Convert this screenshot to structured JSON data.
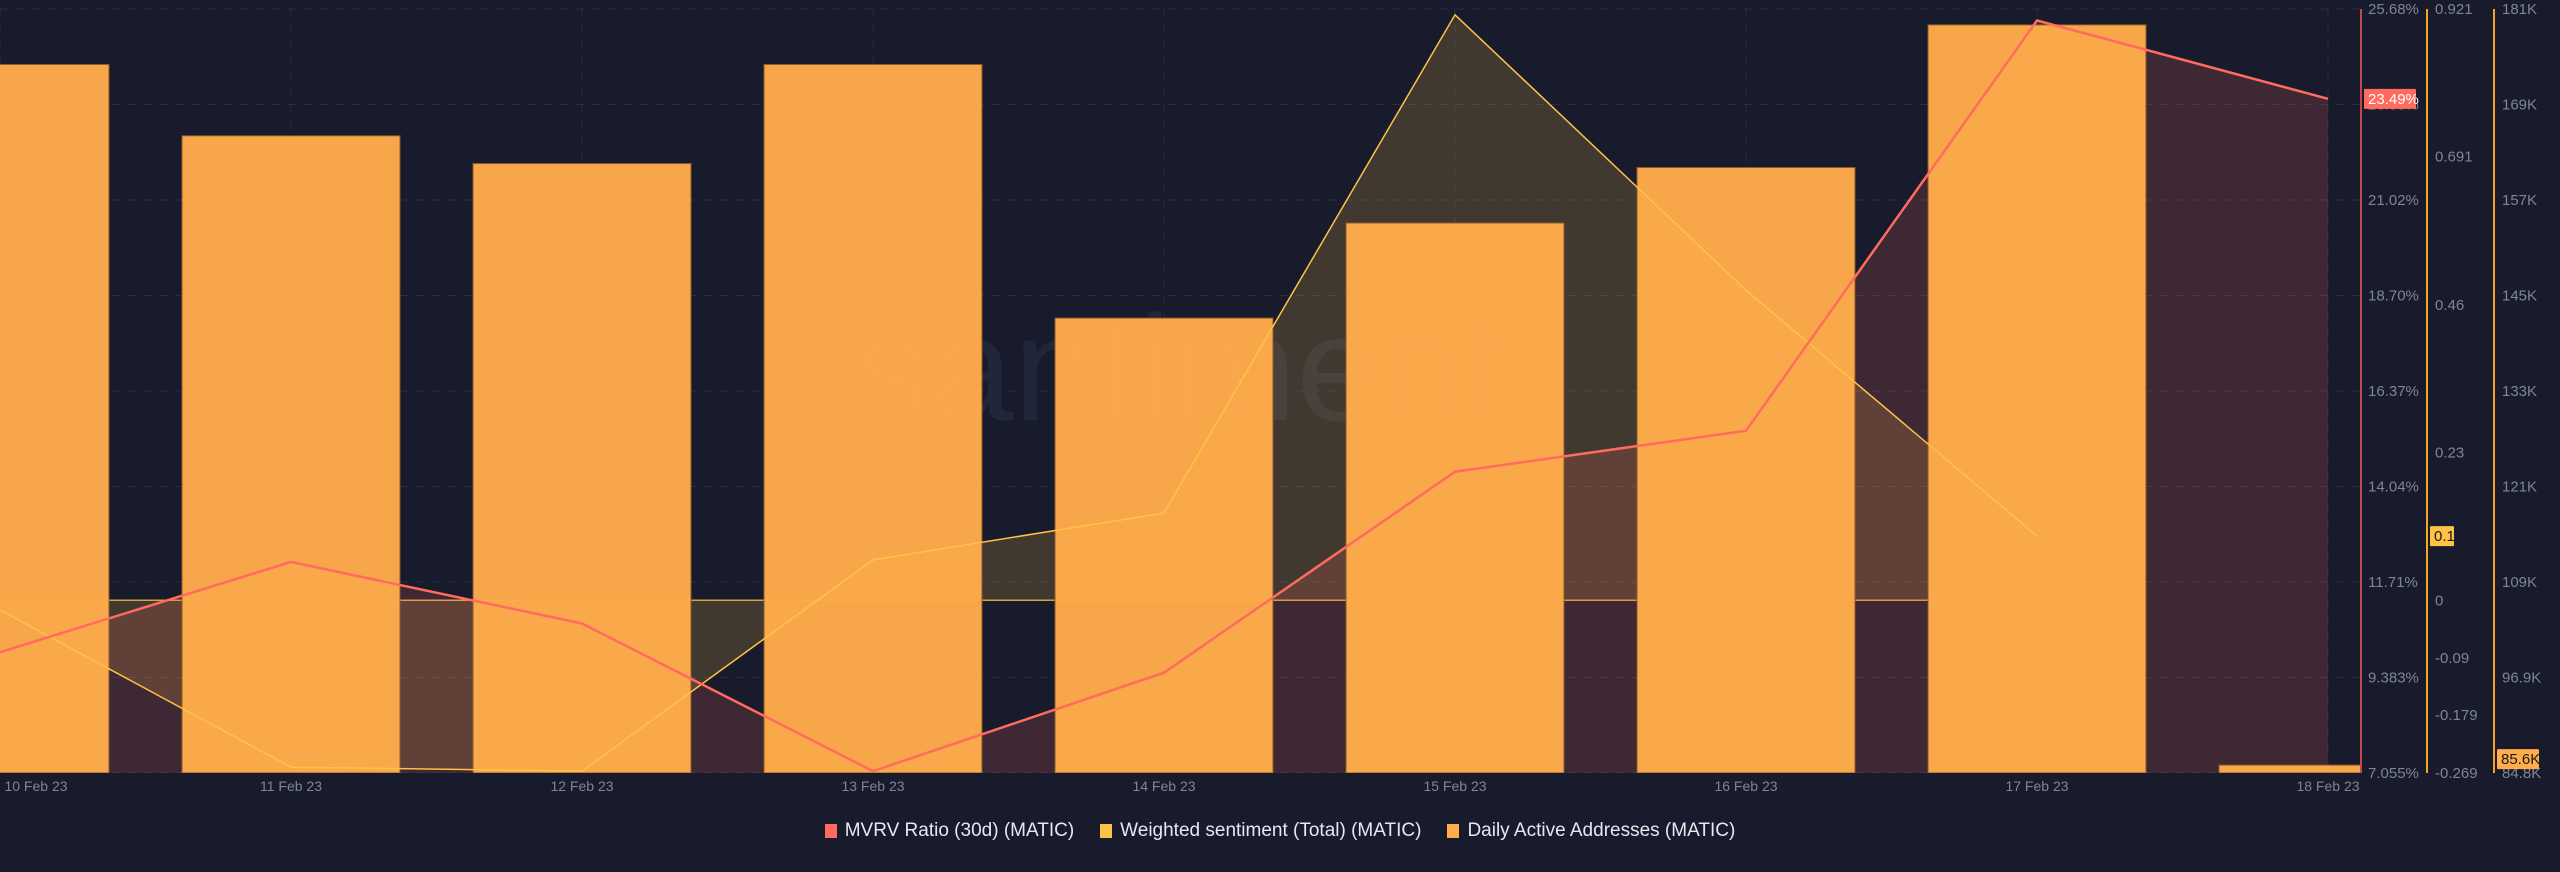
{
  "chart_data": {
    "type": "bar+line",
    "title": "",
    "watermark": "santiment",
    "categories": [
      "10 Feb 23",
      "11 Feb 23",
      "12 Feb 23",
      "13 Feb 23",
      "14 Feb 23",
      "15 Feb 23",
      "16 Feb 23",
      "17 Feb 23",
      "18 Feb 23"
    ],
    "series": [
      {
        "name": "MVRV Ratio (30d) (MATIC)",
        "type": "line-area",
        "color": "#ff6b5e",
        "axis": "mvrv",
        "unit": "%",
        "values": [
          10.0,
          12.2,
          10.7,
          7.1,
          9.5,
          14.4,
          15.4,
          25.4,
          23.49
        ]
      },
      {
        "name": "Weighted sentiment (Total) (MATIC)",
        "type": "line-area-baseline",
        "color": "#ffc247",
        "axis": "sentiment",
        "values": [
          -0.015,
          -0.26,
          -0.266,
          0.063,
          0.136,
          0.912,
          0.483,
          0.1,
          null
        ]
      },
      {
        "name": "Daily Active Addresses (MATIC)",
        "type": "bar",
        "color": "#ffac4b",
        "axis": "daa",
        "values": [
          174000,
          165000,
          161500,
          174000,
          142000,
          154000,
          161000,
          179000,
          85600
        ]
      }
    ],
    "axes": {
      "mvrv": {
        "ticks": [
          "25.68%",
          "23.35%",
          "21.02%",
          "18.70%",
          "16.37%",
          "14.04%",
          "11.71%",
          "9.383%",
          "7.055%"
        ],
        "range": [
          7.055,
          25.68
        ],
        "current_label": "23.49%",
        "current_color": "#ff6b5e"
      },
      "sentiment": {
        "ticks": [
          "0.921",
          "0.691",
          "0.46",
          "0.23",
          "0",
          "-0.09",
          "-0.179",
          "-0.269"
        ],
        "tick_values": [
          0.921,
          0.691,
          0.46,
          0.23,
          0,
          -0.09,
          -0.179,
          -0.269
        ],
        "range": [
          -0.269,
          0.921
        ],
        "current_label": "0.1",
        "current_color": "#ffc247"
      },
      "daa": {
        "ticks": [
          "181K",
          "169K",
          "157K",
          "145K",
          "133K",
          "121K",
          "109K",
          "96.9K",
          "84.8K"
        ],
        "range": [
          84600,
          181000
        ],
        "current_label": "85.6K",
        "current_color": "#ffac4b"
      }
    },
    "xlabel": "",
    "grid": true,
    "legend_position": "bottom"
  },
  "legend": [
    {
      "label": "MVRV Ratio (30d) (MATIC)",
      "color": "#ff6b5e"
    },
    {
      "label": "Weighted sentiment (Total) (MATIC)",
      "color": "#ffc247"
    },
    {
      "label": "Daily Active Addresses (MATIC)",
      "color": "#ffac4b"
    }
  ],
  "colors": {
    "background": "#181b2b",
    "grid": "#2a2e40",
    "axis_text": "#7f8596",
    "mvrv_axis_line": "#c2474a",
    "sentiment_axis_line": "#f5a623",
    "daa_axis_line": "#f5a623"
  }
}
